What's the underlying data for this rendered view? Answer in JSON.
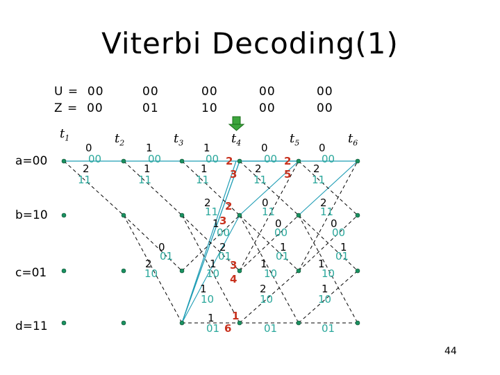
{
  "title": "Viterbi Decoding(1)",
  "page_number": "44",
  "header": {
    "u_row": [
      "U =  00",
      "00",
      "00",
      "00",
      "00"
    ],
    "z_row": [
      "Z =  00",
      "01",
      "10",
      "00",
      "00"
    ]
  },
  "time_labels": [
    "t",
    "t",
    "t",
    "t",
    "t",
    "t"
  ],
  "time_subscripts": [
    "1",
    "2",
    "3",
    "4",
    "5",
    "6"
  ],
  "states": [
    "a=00",
    "b=10",
    "c=01",
    "d=11"
  ],
  "colors": {
    "survivor": "#1f9db5",
    "label_teal": "#2aa79b",
    "metric_red": "#c8321e",
    "node_green": "#1a9060",
    "arrow_fill": "#3ca53c"
  },
  "labels_black": [
    "0",
    "2",
    "1",
    "1",
    "1",
    "1",
    "0",
    "2",
    "0",
    "2",
    "0",
    "2",
    "2",
    "0",
    "1",
    "2",
    "1",
    "0",
    "1",
    "1",
    "2",
    "0",
    "1",
    "1",
    "1",
    "2",
    "1",
    "1"
  ],
  "labels_teal": [
    "00",
    "11",
    "00",
    "11",
    "00",
    "11",
    "00",
    "11",
    "00",
    "11",
    "11",
    "00",
    "11",
    "00",
    "11",
    "00",
    "01",
    "10",
    "01",
    "10",
    "01",
    "10",
    "01",
    "10",
    "10",
    "10",
    "10",
    "01",
    "01",
    "01"
  ],
  "labels_red": [
    "2",
    "3",
    "2",
    "5",
    "2",
    "3",
    "3",
    "4",
    "1",
    "6"
  ]
}
